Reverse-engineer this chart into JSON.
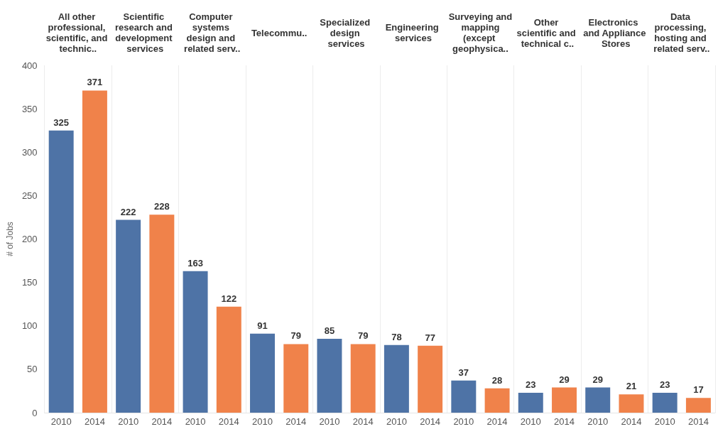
{
  "chart_data": {
    "type": "bar",
    "ylabel": "# of Jobs",
    "categories": [
      "All other professional, scientific, and technic..",
      "Scientific research and development services",
      "Computer systems design and related serv..",
      "Telecommu..",
      "Specialized design services",
      "Engineering services",
      "Surveying and mapping (except geophysica..",
      "Other scientific and technical c..",
      "Electronics and Appliance Stores",
      "Data processing, hosting and related serv.."
    ],
    "series": [
      {
        "name": "2010",
        "color": "#4e73a6",
        "values": [
          325,
          222,
          163,
          91,
          85,
          78,
          37,
          23,
          29,
          23
        ]
      },
      {
        "name": "2014",
        "color": "#f0824a",
        "values": [
          371,
          228,
          122,
          79,
          79,
          77,
          28,
          29,
          21,
          17
        ]
      }
    ],
    "ylim": [
      0,
      400
    ],
    "yticks": [
      0,
      50,
      100,
      150,
      200,
      250,
      300,
      350,
      400
    ],
    "data_labels": true,
    "grid": "x"
  }
}
